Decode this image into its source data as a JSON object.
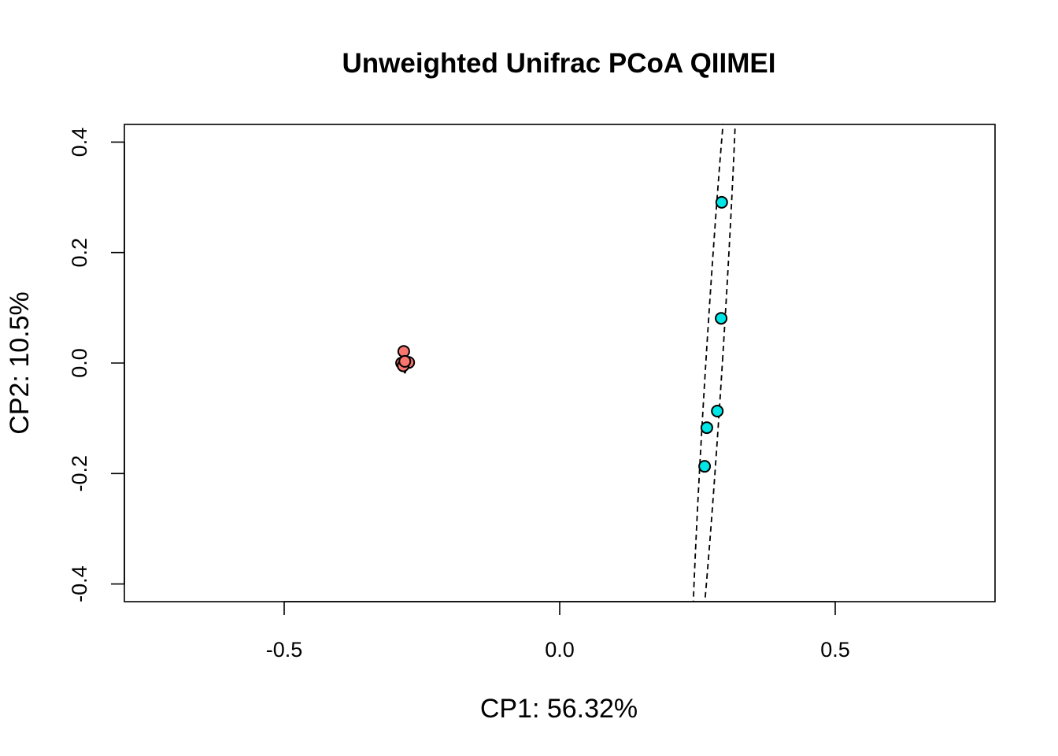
{
  "chart_data": {
    "type": "scatter",
    "title": "Unweighted Unifrac PCoA QIIMEI",
    "xlabel": "CP1: 56.32%",
    "ylabel": "CP2: 10.5%",
    "xlim": [
      -0.79,
      0.79
    ],
    "ylim": [
      -0.432,
      0.432
    ],
    "xticks": [
      -0.5,
      0.0,
      0.5
    ],
    "xtick_labels": [
      "-0.5",
      "0.0",
      "0.5"
    ],
    "yticks": [
      -0.4,
      -0.2,
      0.0,
      0.2,
      0.4
    ],
    "ytick_labels": [
      "-0.4",
      "-0.2",
      "0.0",
      "0.2",
      "0.4"
    ],
    "grid": false,
    "series": [
      {
        "color": "#F8766D",
        "points": [
          {
            "x": -0.283,
            "y": 0.021
          },
          {
            "x": -0.287,
            "y": 0.0
          },
          {
            "x": -0.274,
            "y": 0.001
          },
          {
            "x": -0.284,
            "y": -0.005
          },
          {
            "x": -0.281,
            "y": 0.003
          }
        ],
        "ellipse": {
          "cx": -0.281,
          "cy": 0.004,
          "rx": 0.003,
          "ry": 0.022,
          "angle": 0
        }
      },
      {
        "color": "#00E5E5",
        "points": [
          {
            "x": 0.294,
            "y": 0.291
          },
          {
            "x": 0.293,
            "y": 0.081
          },
          {
            "x": 0.286,
            "y": -0.087
          },
          {
            "x": 0.267,
            "y": -0.117
          },
          {
            "x": 0.263,
            "y": -0.187
          }
        ],
        "ellipse": {
          "cx": 0.281,
          "cy": 0.013,
          "rx": 0.015,
          "ry": 0.62,
          "angle": 3.6
        }
      }
    ]
  }
}
